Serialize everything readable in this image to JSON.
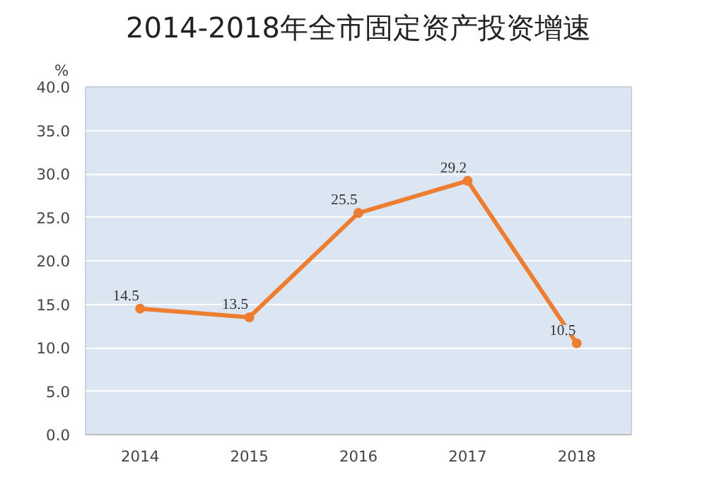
{
  "chart_data": {
    "type": "line",
    "title": "2014-2018年全市固定资产投资增速",
    "ylabel": "%",
    "categories": [
      "2014",
      "2015",
      "2016",
      "2017",
      "2018"
    ],
    "series": [
      {
        "color": "#ed7d31",
        "values": [
          14.5,
          13.5,
          25.5,
          29.2,
          10.5
        ]
      }
    ],
    "ylim": [
      0,
      40
    ],
    "yticks": [
      {
        "value": 0,
        "label": "0.0"
      },
      {
        "value": 5,
        "label": "5.0"
      },
      {
        "value": 10,
        "label": "10.0"
      },
      {
        "value": 15,
        "label": "15.0"
      },
      {
        "value": 20,
        "label": "20.0"
      },
      {
        "value": 25,
        "label": "25.0"
      },
      {
        "value": 30,
        "label": "30.0"
      },
      {
        "value": 35,
        "label": "35.0"
      },
      {
        "value": 40,
        "label": "40.0"
      }
    ],
    "grid": "y",
    "marker": "circle",
    "line_style": "solid",
    "data_labels": true
  }
}
